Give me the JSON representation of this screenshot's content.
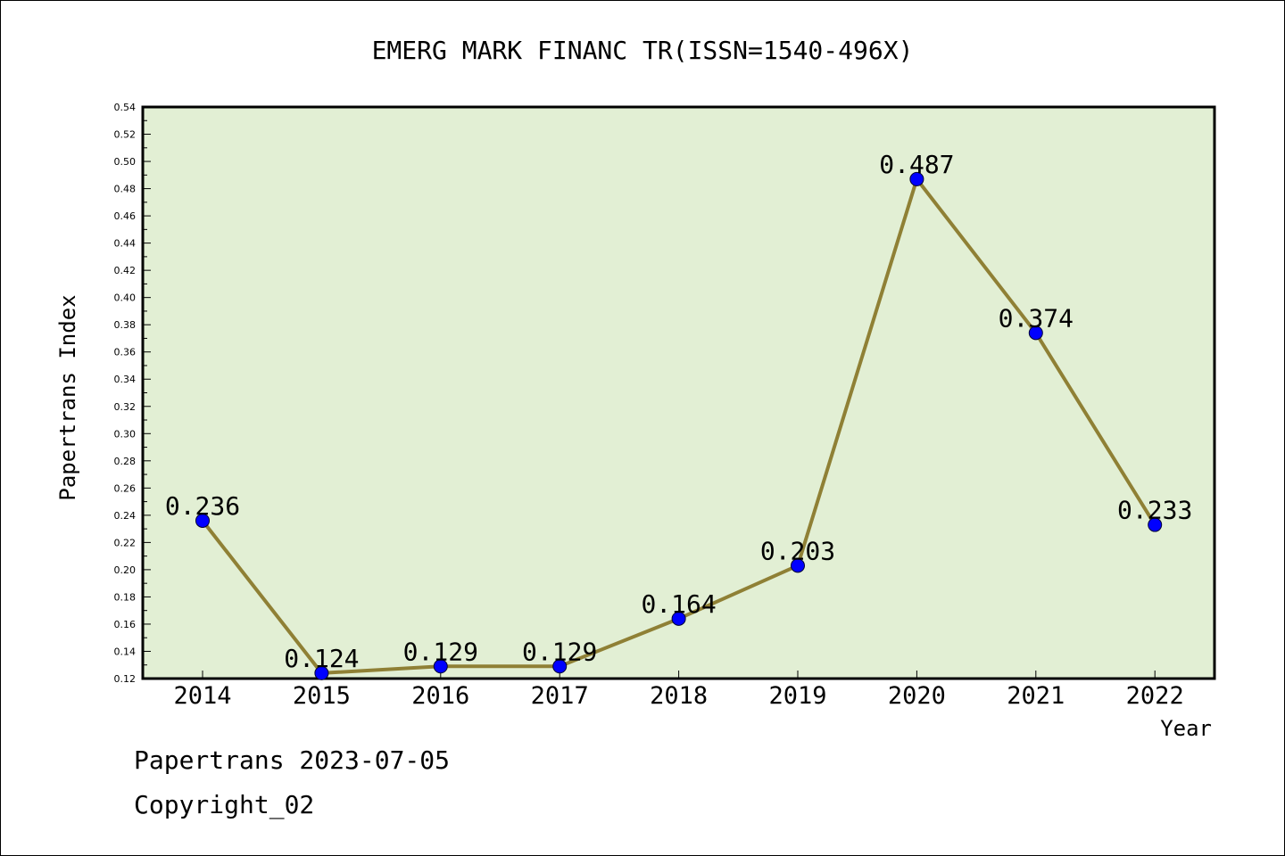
{
  "chart_data": {
    "type": "line",
    "title": "EMERG MARK FINANC TR(ISSN=1540-496X)",
    "xlabel": "Year",
    "ylabel": "Papertrans Index",
    "categories": [
      "2014",
      "2015",
      "2016",
      "2017",
      "2018",
      "2019",
      "2020",
      "2021",
      "2022"
    ],
    "series": [
      {
        "values": [
          0.236,
          0.124,
          0.129,
          0.129,
          0.164,
          0.203,
          0.487,
          0.374,
          0.233
        ],
        "labels": [
          "0.236",
          "0.124",
          "0.129",
          "0.129",
          "0.164",
          "0.203",
          "0.487",
          "0.374",
          "0.233"
        ]
      }
    ],
    "ylim": [
      0.12,
      0.54
    ],
    "yticks": [
      "0.12",
      "0.14",
      "0.16",
      "0.18",
      "0.20",
      "0.22",
      "0.24",
      "0.26",
      "0.28",
      "0.30",
      "0.32",
      "0.34",
      "0.36",
      "0.38",
      "0.40",
      "0.42",
      "0.44",
      "0.46",
      "0.48",
      "0.50",
      "0.52",
      "0.54"
    ],
    "grid": false,
    "colors": {
      "plot_background": "#e2efd4",
      "line": "#8f8035",
      "marker": "#0000ff"
    }
  },
  "footer": {
    "source": "Papertrans 2023-07-05",
    "copyright": "Copyright_02"
  }
}
